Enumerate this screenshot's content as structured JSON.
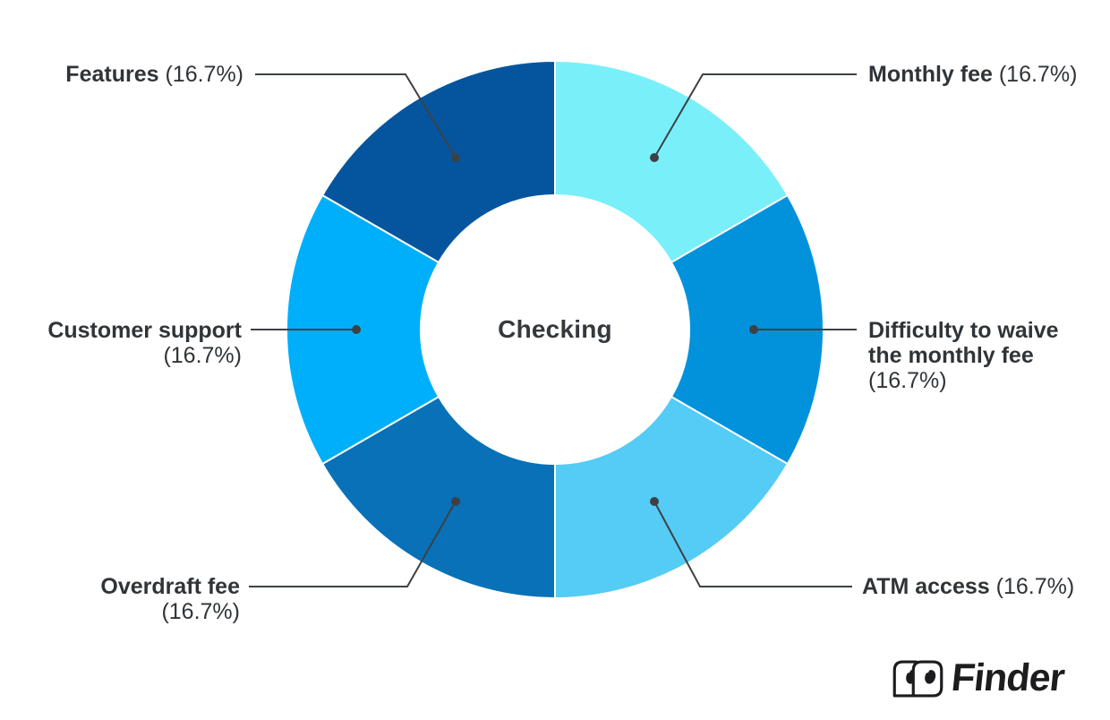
{
  "chart_data": {
    "type": "pie",
    "subtype": "donut",
    "center_label": "Checking",
    "unit": "%",
    "total": 100,
    "legend_position": "callouts",
    "segments": [
      {
        "label": "Monthly fee",
        "value": 16.7,
        "display": "Monthly fee (16.7%)",
        "color": "#79EFFA"
      },
      {
        "label": "Difficulty to waive the monthly fee",
        "value": 16.7,
        "display": "Difficulty to waive the monthly fee (16.7%)",
        "color": "#0292DB"
      },
      {
        "label": "ATM access",
        "value": 16.7,
        "display": "ATM access (16.7%)",
        "color": "#54CCF5"
      },
      {
        "label": "Overdraft fee",
        "value": 16.7,
        "display": "Overdraft fee (16.7%)",
        "color": "#0871B8"
      },
      {
        "label": "Customer support",
        "value": 16.7,
        "display": "Customer support (16.7%)",
        "color": "#00AFFA"
      },
      {
        "label": "Features",
        "value": 16.7,
        "display": "Features (16.7%)",
        "color": "#05559E"
      }
    ]
  },
  "callouts": [
    {
      "id": "monthly-fee",
      "name_lines": [
        "Monthly fee"
      ],
      "pct": "(16.7%)",
      "pct_inline": true
    },
    {
      "id": "difficulty-to-waive",
      "name_lines": [
        "Difficulty to waive",
        "the monthly fee"
      ],
      "pct": "(16.7%)",
      "pct_inline": false
    },
    {
      "id": "atm-access",
      "name_lines": [
        "ATM access"
      ],
      "pct": "(16.7%)",
      "pct_inline": true
    },
    {
      "id": "overdraft-fee",
      "name_lines": [
        "Overdraft fee"
      ],
      "pct": "(16.7%)",
      "pct_inline": false
    },
    {
      "id": "customer-support",
      "name_lines": [
        "Customer support"
      ],
      "pct": "(16.7%)",
      "pct_inline": false
    },
    {
      "id": "features",
      "name_lines": [
        "Features"
      ],
      "pct": "(16.7%)",
      "pct_inline": true
    }
  ],
  "logo": {
    "text": "Finder"
  },
  "colors": {
    "background": "#ffffff",
    "text": "#303438",
    "leader_line": "#3d4145",
    "segment_gap": "#ffffff"
  }
}
